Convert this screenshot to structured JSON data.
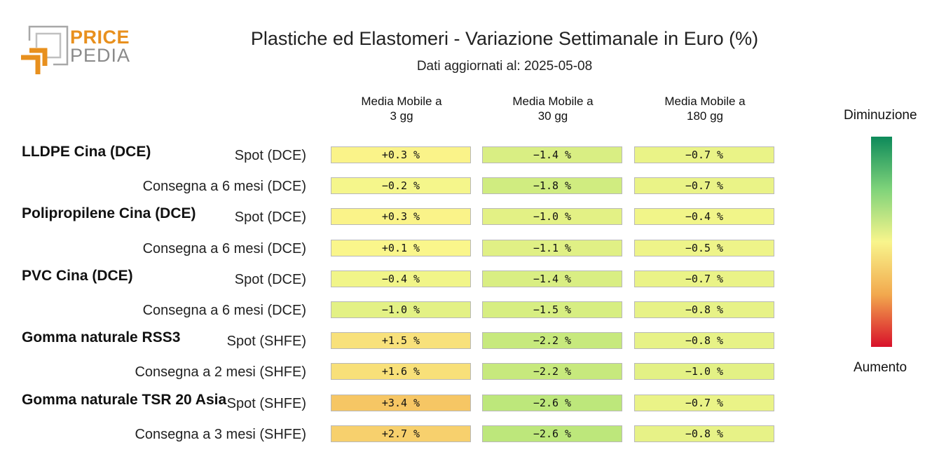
{
  "logo": {
    "line1": "PRICE",
    "line2": "PEDIA"
  },
  "chart_data": {
    "type": "table",
    "title": "Plastiche ed Elastomeri - Variazione Settimanale in Euro (%)",
    "subtitle": "Dati aggiornati al: 2025-05-08",
    "columns": [
      {
        "line1": "Media Mobile a",
        "line2": "3 gg"
      },
      {
        "line1": "Media Mobile a",
        "line2": "30 gg"
      },
      {
        "line1": "Media Mobile a",
        "line2": "180 gg"
      }
    ],
    "rows": [
      {
        "group": "LLDPE Cina (DCE)",
        "label": "Spot (DCE)",
        "values": [
          0.3,
          -1.4,
          -0.7
        ],
        "display": [
          "+0.3 %",
          "−1.4 %",
          "−0.7 %"
        ]
      },
      {
        "group": "",
        "label": "Consegna a 6 mesi (DCE)",
        "values": [
          -0.2,
          -1.8,
          -0.7
        ],
        "display": [
          "−0.2 %",
          "−1.8 %",
          "−0.7 %"
        ]
      },
      {
        "group": "Polipropilene Cina (DCE)",
        "label": "Spot (DCE)",
        "values": [
          0.3,
          -1.0,
          -0.4
        ],
        "display": [
          "+0.3 %",
          "−1.0 %",
          "−0.4 %"
        ]
      },
      {
        "group": "",
        "label": "Consegna a 6 mesi (DCE)",
        "values": [
          0.1,
          -1.1,
          -0.5
        ],
        "display": [
          "+0.1 %",
          "−1.1 %",
          "−0.5 %"
        ]
      },
      {
        "group": "PVC Cina (DCE)",
        "label": "Spot (DCE)",
        "values": [
          -0.4,
          -1.4,
          -0.7
        ],
        "display": [
          "−0.4 %",
          "−1.4 %",
          "−0.7 %"
        ]
      },
      {
        "group": "",
        "label": "Consegna a 6 mesi (DCE)",
        "values": [
          -1.0,
          -1.5,
          -0.8
        ],
        "display": [
          "−1.0 %",
          "−1.5 %",
          "−0.8 %"
        ]
      },
      {
        "group": "Gomma naturale RSS3",
        "label": "Spot (SHFE)",
        "values": [
          1.5,
          -2.2,
          -0.8
        ],
        "display": [
          "+1.5 %",
          "−2.2 %",
          "−0.8 %"
        ]
      },
      {
        "group": "",
        "label": "Consegna a 2 mesi (SHFE)",
        "values": [
          1.6,
          -2.2,
          -1.0
        ],
        "display": [
          "+1.6 %",
          "−2.2 %",
          "−1.0 %"
        ]
      },
      {
        "group": "Gomma naturale TSR 20 Asia",
        "label": "Spot (SHFE)",
        "values": [
          3.4,
          -2.6,
          -0.7
        ],
        "display": [
          "+3.4 %",
          "−2.6 %",
          "−0.7 %"
        ]
      },
      {
        "group": "",
        "label": "Consegna a 3 mesi (SHFE)",
        "values": [
          2.7,
          -2.6,
          -0.8
        ],
        "display": [
          "+2.7 %",
          "−2.6 %",
          "−0.8 %"
        ]
      }
    ],
    "legend": {
      "top": "Diminuzione",
      "bottom": "Aumento",
      "colors": [
        "#0d8a5a",
        "#7fd37a",
        "#f8f58c",
        "#f2a94e",
        "#d8102a"
      ]
    }
  }
}
